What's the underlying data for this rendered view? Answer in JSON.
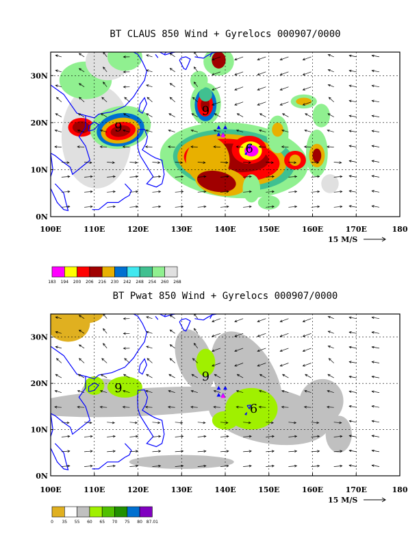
{
  "panels": [
    {
      "id": "claus",
      "title": "BT CLAUS 850 Wind + Gyrelocs 000907/0000",
      "x_ticks": [
        "100E",
        "110E",
        "120E",
        "130E",
        "140E",
        "150E",
        "160E",
        "170E",
        "180"
      ],
      "y_ticks": [
        "0N",
        "10N",
        "20N",
        "30N"
      ],
      "reference_vector": "15 M/S",
      "storm_numbers": [
        "9",
        "6",
        "9"
      ],
      "colorbar": {
        "labels": [
          "183",
          "194",
          "200",
          "206",
          "216",
          "230",
          "242",
          "248",
          "254",
          "260",
          "268"
        ],
        "colors": [
          "#ff00ff",
          "#ffff00",
          "#ff0000",
          "#a00000",
          "#e8b000",
          "#0070d0",
          "#40e8f0",
          "#40c090",
          "#90f090",
          "#e0e0e0"
        ]
      }
    },
    {
      "id": "pwat",
      "title": "BT Pwat 850 Wind + Gyrelocs 000907/0000",
      "x_ticks": [
        "100E",
        "110E",
        "120E",
        "130E",
        "140E",
        "150E",
        "160E",
        "170E",
        "180"
      ],
      "y_ticks": [
        "0N",
        "10N",
        "20N",
        "30N"
      ],
      "reference_vector": "15 M/S",
      "storm_numbers": [
        "9",
        "9",
        "6"
      ],
      "colorbar": {
        "labels": [
          "0",
          "35",
          "55",
          "60",
          "65",
          "70",
          "75",
          "80",
          "87.01"
        ],
        "colors": [
          "#e0b020",
          "#ffffff",
          "#c0c0c0",
          "#a0f000",
          "#50c000",
          "#209000",
          "#0070d0",
          "#8000c0"
        ]
      }
    }
  ],
  "colors": {
    "coastline": "#0000ff",
    "marker_triangle": "#0000ff",
    "marker_magenta": "#ff00ff"
  }
}
